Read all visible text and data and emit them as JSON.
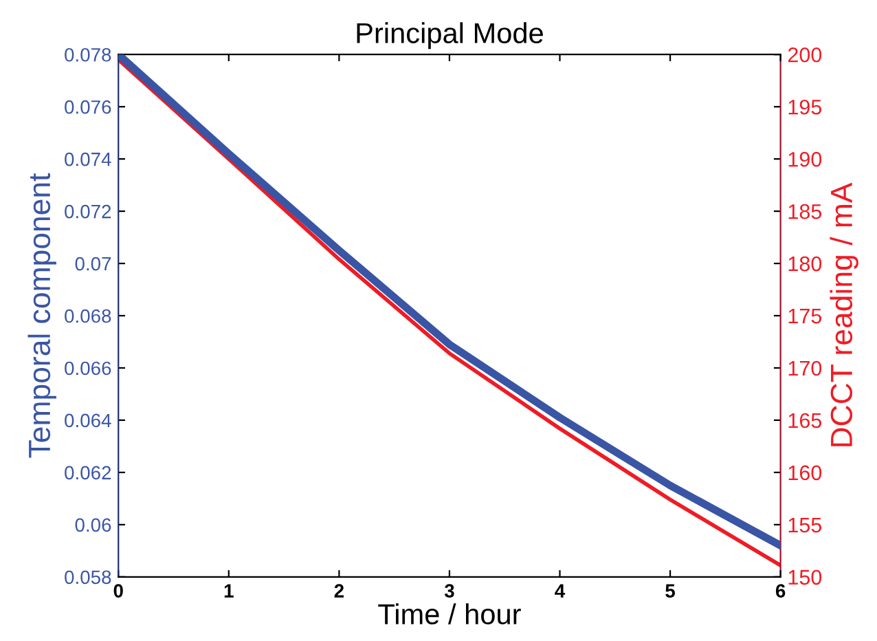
{
  "chart_data": {
    "type": "line",
    "title": "Principal Mode",
    "xlabel": "Time / hour",
    "ylabel": "Temporal component",
    "y2label": "DCCT reading / mA",
    "x": [
      0,
      1,
      2,
      3,
      4,
      5,
      6
    ],
    "series": [
      {
        "color": "#3a55a4",
        "values": [
          0.078,
          0.0742,
          0.0705,
          0.0669,
          0.0641,
          0.0615,
          0.0592
        ]
      },
      {
        "color": "#ee1c25",
        "axis": "y2",
        "values": [
          199.5,
          190.0,
          180.4,
          171.4,
          164.2,
          157.4,
          151.1
        ]
      }
    ],
    "xlim": [
      0,
      6
    ],
    "xticks": [
      0,
      1,
      2,
      3,
      4,
      5,
      6
    ],
    "ylim": [
      0.058,
      0.078
    ],
    "yticks": [
      0.058,
      0.06,
      0.062,
      0.064,
      0.066,
      0.068,
      0.07,
      0.072,
      0.074,
      0.076,
      0.078
    ],
    "y2lim": [
      150,
      200
    ],
    "y2ticks": [
      150,
      155,
      160,
      165,
      170,
      175,
      180,
      185,
      190,
      195,
      200
    ],
    "grid": false,
    "legend": false,
    "marker": "none",
    "line_style": "solid"
  }
}
